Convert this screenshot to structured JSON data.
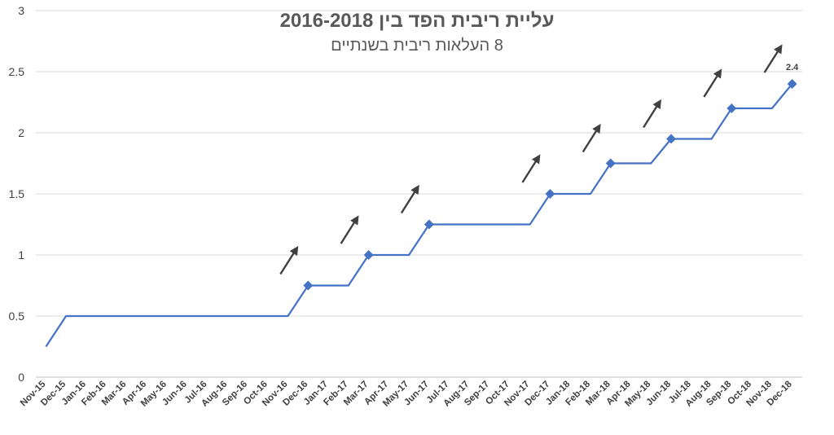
{
  "chart_data": {
    "type": "line",
    "title": "עליית ריבית הפד בין 2016-2018",
    "subtitle": "8 העלאות ריבית בשנתיים",
    "xlabel": "",
    "ylabel": "",
    "ylim": [
      0,
      3
    ],
    "yticks": [
      "0",
      "0.5",
      "1",
      "1.5",
      "2",
      "2.5",
      "3"
    ],
    "grid": true,
    "legend": "none",
    "line_color": "#4472C4",
    "arrow_color": "#404040",
    "categories": [
      "Nov-15",
      "Dec-15",
      "Jan-16",
      "Feb-16",
      "Mar-16",
      "Apr-16",
      "May-16",
      "Jun-16",
      "Jul-16",
      "Aug-16",
      "Sep-16",
      "Oct-16",
      "Nov-16",
      "Dec-16",
      "Jan-17",
      "Feb-17",
      "Mar-17",
      "Apr-17",
      "May-17",
      "Jun-17",
      "Jul-17",
      "Aug-17",
      "Sep-17",
      "Oct-17",
      "Nov-17",
      "Dec-17",
      "Jan-18",
      "Feb-18",
      "Mar-18",
      "Apr-18",
      "May-18",
      "Jun-18",
      "Jul-18",
      "Aug-18",
      "Sep-18",
      "Oct-18",
      "Nov-18",
      "Dec-18"
    ],
    "series": [
      {
        "values": [
          0.25,
          0.5,
          0.5,
          0.5,
          0.5,
          0.5,
          0.5,
          0.5,
          0.5,
          0.5,
          0.5,
          0.5,
          0.5,
          0.75,
          0.75,
          0.75,
          1,
          1,
          1,
          1.25,
          1.25,
          1.25,
          1.25,
          1.25,
          1.25,
          1.5,
          1.5,
          1.5,
          1.75,
          1.75,
          1.75,
          1.95,
          1.95,
          1.95,
          2.2,
          2.2,
          2.2,
          2.4
        ]
      }
    ],
    "hike_points": [
      "Dec-16",
      "Mar-17",
      "Jun-17",
      "Dec-17",
      "Mar-18",
      "Jun-18",
      "Sep-18",
      "Dec-18"
    ],
    "data_labels": [
      {
        "category": "Dec-18",
        "value": 2.4,
        "text": "2.4"
      }
    ]
  }
}
